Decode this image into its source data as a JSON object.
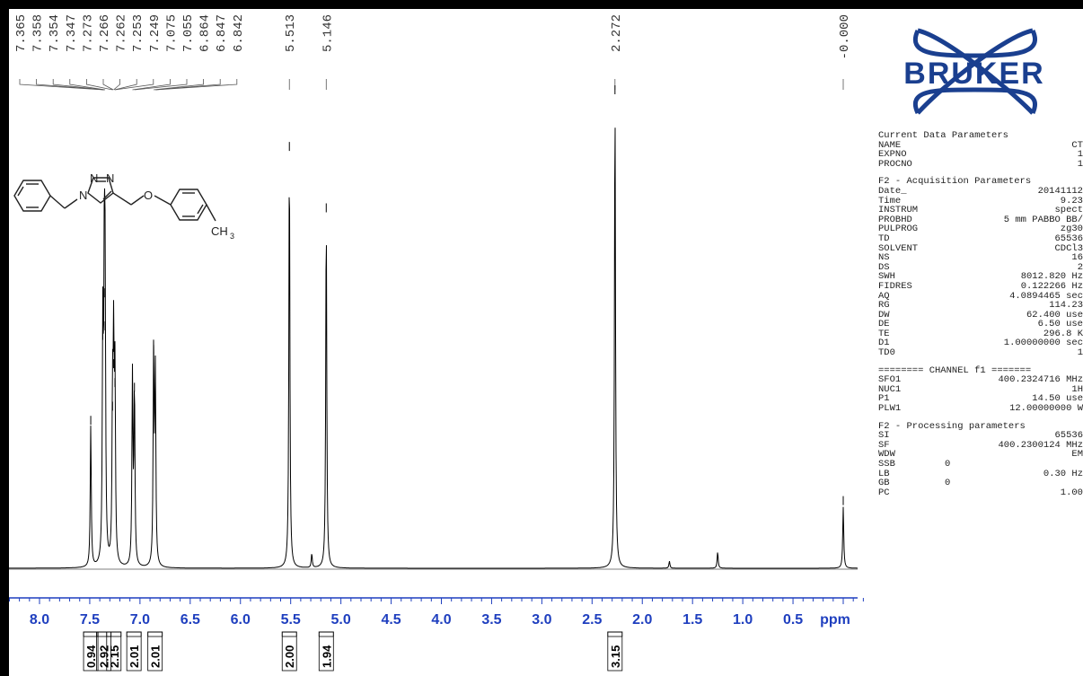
{
  "logo": {
    "text": "BRUKER",
    "color": "#1a3f8f"
  },
  "colors": {
    "spectrum": "#000000",
    "integral_trace": "#2e8b57",
    "axis": "#1f3fbf",
    "axis_text": "#1f3fbf"
  },
  "chart_data": {
    "type": "line",
    "xlabel": "ppm",
    "xlim": [
      8.3,
      -0.25
    ],
    "x_reversed": true,
    "ticks_major": [
      8.0,
      7.5,
      7.0,
      6.5,
      6.0,
      5.5,
      5.0,
      4.5,
      4.0,
      3.5,
      3.0,
      2.5,
      2.0,
      1.5,
      1.0,
      0.5
    ],
    "tick_labels": [
      "8.0",
      "7.5",
      "7.0",
      "6.5",
      "6.0",
      "5.5",
      "5.0",
      "4.5",
      "4.0",
      "3.5",
      "3.0",
      "2.5",
      "2.0",
      "1.5",
      "1.0",
      "0.5"
    ],
    "peak_labels": [
      "7.365",
      "7.358",
      "7.354",
      "7.347",
      "7.273",
      "7.266",
      "7.262",
      "7.253",
      "7.249",
      "7.075",
      "7.055",
      "6.864",
      "6.847",
      "6.842",
      "5.513",
      "5.146",
      "2.272",
      "-0.000"
    ],
    "peaks": [
      {
        "ppm": 7.49,
        "h": 0.3
      },
      {
        "ppm": 7.37,
        "h": 0.48
      },
      {
        "ppm": 7.355,
        "h": 0.57
      },
      {
        "ppm": 7.347,
        "h": 0.5
      },
      {
        "ppm": 7.273,
        "h": 0.33
      },
      {
        "ppm": 7.262,
        "h": 0.42
      },
      {
        "ppm": 7.249,
        "h": 0.38
      },
      {
        "ppm": 7.075,
        "h": 0.4
      },
      {
        "ppm": 7.055,
        "h": 0.37
      },
      {
        "ppm": 6.864,
        "h": 0.45
      },
      {
        "ppm": 6.847,
        "h": 0.4
      },
      {
        "ppm": 5.513,
        "h": 0.88
      },
      {
        "ppm": 5.29,
        "h": 0.03
      },
      {
        "ppm": 5.146,
        "h": 0.75
      },
      {
        "ppm": 2.272,
        "h": 1.0
      },
      {
        "ppm": 1.73,
        "h": 0.015
      },
      {
        "ppm": 1.25,
        "h": 0.035
      },
      {
        "ppm": -0.0,
        "h": 0.13
      }
    ],
    "integrals": [
      {
        "ppm": 7.49,
        "value": "0.94"
      },
      {
        "ppm": 7.36,
        "value": "2.92"
      },
      {
        "ppm": 7.26,
        "value": "2.15"
      },
      {
        "ppm": 7.06,
        "value": "2.01"
      },
      {
        "ppm": 6.85,
        "value": "2.01"
      },
      {
        "ppm": 5.513,
        "value": "2.00"
      },
      {
        "ppm": 5.146,
        "value": "1.94"
      },
      {
        "ppm": 2.272,
        "value": "3.15"
      }
    ]
  },
  "molecule": {
    "ch3_label": "CH",
    "ch3_sub": "3",
    "n_label": "N",
    "o_label": "O"
  },
  "params": {
    "current": {
      "title": "Current Data Parameters",
      "rows": [
        [
          "NAME",
          "CT"
        ],
        [
          "EXPNO",
          "1"
        ],
        [
          "PROCNO",
          "1"
        ]
      ]
    },
    "acq": {
      "title": "F2 - Acquisition Parameters",
      "rows": [
        [
          "Date_",
          "20141112"
        ],
        [
          "Time",
          "9.23"
        ],
        [
          "INSTRUM",
          "spect"
        ],
        [
          "PROBHD",
          "5 mm PABBO BB/"
        ],
        [
          "PULPROG",
          "zg30"
        ],
        [
          "TD",
          "65536"
        ],
        [
          "SOLVENT",
          "CDCl3"
        ],
        [
          "NS",
          "16"
        ],
        [
          "DS",
          "2"
        ],
        [
          "SWH",
          "8012.820 Hz"
        ],
        [
          "FIDRES",
          "0.122266 Hz"
        ],
        [
          "AQ",
          "4.0894465 sec"
        ],
        [
          "RG",
          "114.23"
        ],
        [
          "DW",
          "62.400 use"
        ],
        [
          "DE",
          "6.50 use"
        ],
        [
          "TE",
          "296.8 K"
        ],
        [
          "D1",
          "1.00000000 sec"
        ],
        [
          "TD0",
          "1"
        ]
      ]
    },
    "channel": {
      "title": "======== CHANNEL f1 =======",
      "rows": [
        [
          "SFO1",
          "400.2324716 MHz"
        ],
        [
          "NUC1",
          "1H"
        ],
        [
          "P1",
          "14.50 use"
        ],
        [
          "PLW1",
          "12.00000000 W"
        ]
      ]
    },
    "proc": {
      "title": "F2 - Processing parameters",
      "rows": [
        [
          "SI",
          "65536"
        ],
        [
          "SF",
          "400.2300124 MHz"
        ],
        [
          "WDW",
          "EM"
        ],
        [
          "SSB",
          "0"
        ],
        [
          "LB",
          "0.30 Hz"
        ],
        [
          "GB",
          "0"
        ],
        [
          "PC",
          "1.00"
        ]
      ]
    }
  }
}
